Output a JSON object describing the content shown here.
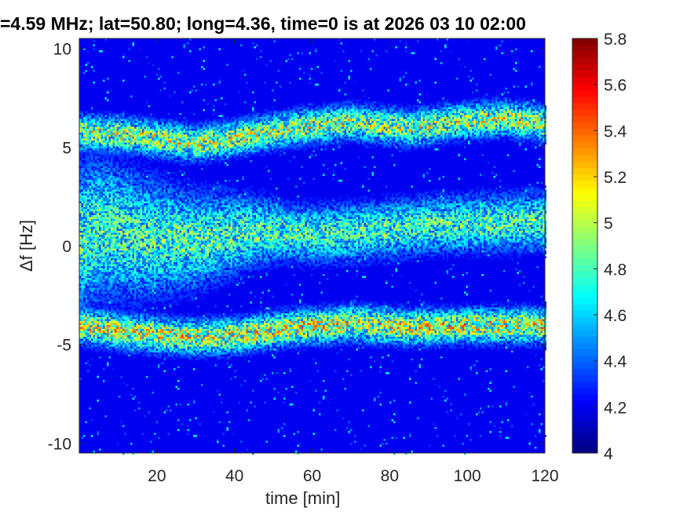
{
  "figure": {
    "title": "=4.59 MHz;  lat=50.80; long=4.36, time=0 is at 2026 03 10 02:00"
  },
  "chart_data": {
    "type": "heatmap",
    "title": "=4.59 MHz;  lat=50.80; long=4.36, time=0 is at 2026 03 10 02:00",
    "xlabel": "time [min]",
    "ylabel": "Δf [Hz]",
    "xlim": [
      0,
      120
    ],
    "ylim": [
      -10.5,
      10.5
    ],
    "xticks": [
      20,
      40,
      60,
      80,
      100,
      120
    ],
    "xtick_labels": [
      "20",
      "40",
      "60",
      "80",
      "100",
      "120"
    ],
    "yticks": [
      -10,
      -5,
      0,
      5,
      10
    ],
    "ytick_labels": [
      "-10",
      "-5",
      "0",
      "5",
      "10"
    ],
    "colorbar": {
      "colormap": "jet",
      "range": [
        4,
        5.8
      ],
      "ticks": [
        4,
        4.2,
        4.4,
        4.6,
        4.8,
        5,
        5.2,
        5.4,
        5.6,
        5.8
      ],
      "tick_labels": [
        "4",
        "4.2",
        "4.4",
        "4.6",
        "4.8",
        "5",
        "5.2",
        "5.4",
        "5.6",
        "5.8"
      ]
    },
    "background_value": 4.0,
    "bands": [
      {
        "label": "upper trace",
        "points": [
          [
            0,
            5.8
          ],
          [
            15,
            5.6
          ],
          [
            30,
            5.2
          ],
          [
            40,
            5.5
          ],
          [
            55,
            6.0
          ],
          [
            70,
            6.3
          ],
          [
            85,
            6.0
          ],
          [
            95,
            6.3
          ],
          [
            110,
            6.5
          ],
          [
            120,
            6.2
          ]
        ],
        "width_hz": 0.8,
        "peak": 5.1
      },
      {
        "label": "central trace",
        "points": [
          [
            0,
            0.4
          ],
          [
            5,
            1.0
          ],
          [
            15,
            0.5
          ],
          [
            30,
            0.3
          ],
          [
            45,
            0.8
          ],
          [
            60,
            0.6
          ],
          [
            75,
            0.8
          ],
          [
            90,
            1.1
          ],
          [
            105,
            1.2
          ],
          [
            120,
            1.3
          ]
        ],
        "width_hz": 1.3,
        "peak": 4.85
      },
      {
        "label": "lower trace",
        "points": [
          [
            0,
            -4.0
          ],
          [
            15,
            -4.4
          ],
          [
            30,
            -4.6
          ],
          [
            40,
            -4.5
          ],
          [
            55,
            -4.1
          ],
          [
            70,
            -3.9
          ],
          [
            85,
            -4.1
          ],
          [
            100,
            -4.0
          ],
          [
            110,
            -4.0
          ],
          [
            120,
            -4.0
          ]
        ],
        "width_hz": 0.8,
        "peak": 5.2
      }
    ]
  }
}
